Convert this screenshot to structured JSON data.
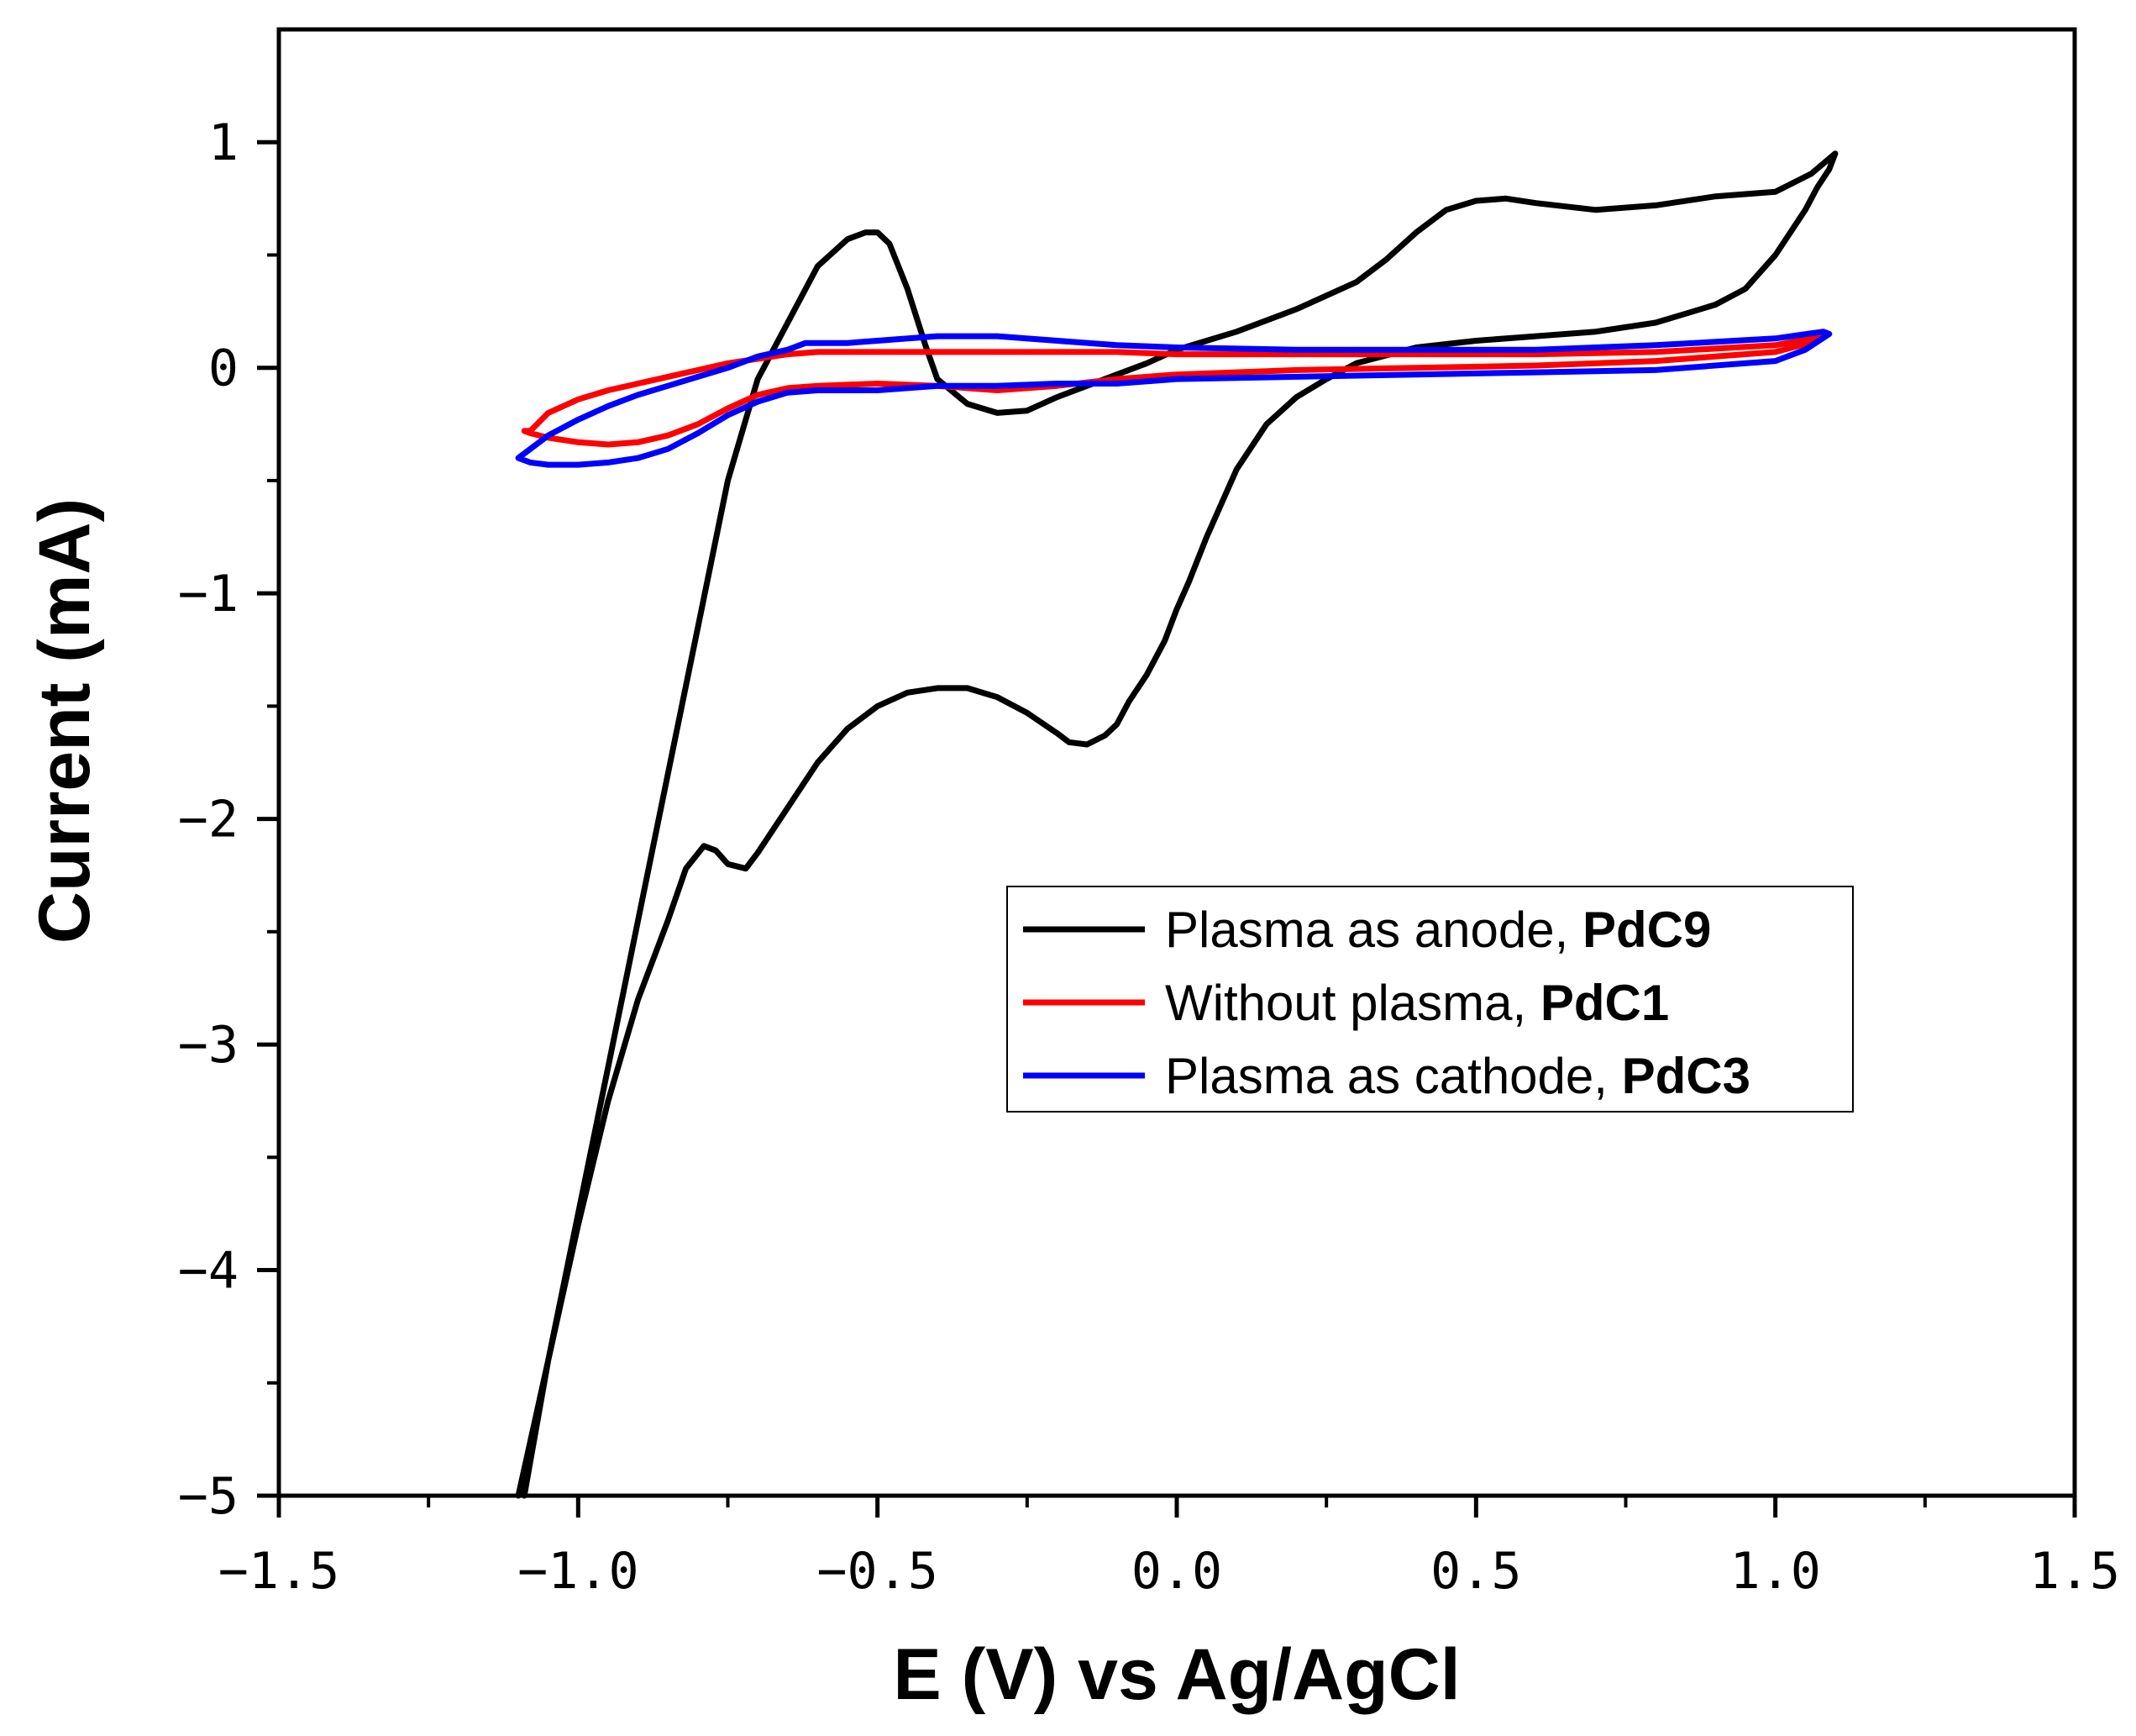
{
  "chart_data": {
    "type": "line",
    "title": "",
    "xlabel": "E (V) vs Ag/AgCl",
    "ylabel": "Current (mA)",
    "xlim": [
      -1.5,
      1.5
    ],
    "ylim": [
      -5,
      1.5
    ],
    "xticks": [
      -1.5,
      -1.0,
      -0.5,
      0.0,
      0.5,
      1.0,
      1.5
    ],
    "xtick_labels": [
      "−1.5",
      "−1.0",
      "−0.5",
      "0.0",
      "0.5",
      "1.0",
      "1.5"
    ],
    "yticks": [
      -5,
      -4,
      -3,
      -2,
      -1,
      0,
      1
    ],
    "ytick_labels": [
      "−5",
      "−4",
      "−3",
      "−2",
      "−1",
      "0",
      "1"
    ],
    "grid": false,
    "legend_position": "center-right",
    "series": [
      {
        "name": "Plasma as anode, PdC9",
        "label_plain": "Plasma as anode, ",
        "label_bold": "PdC9",
        "color": "#000000",
        "x": [
          -1.1,
          -1.05,
          -1.0,
          -0.95,
          -0.9,
          -0.85,
          -0.8,
          -0.75,
          -0.7,
          -0.65,
          -0.6,
          -0.55,
          -0.52,
          -0.5,
          -0.48,
          -0.45,
          -0.42,
          -0.4,
          -0.35,
          -0.3,
          -0.25,
          -0.2,
          -0.15,
          -0.1,
          -0.05,
          0.0,
          0.05,
          0.1,
          0.2,
          0.3,
          0.35,
          0.4,
          0.45,
          0.5,
          0.55,
          0.6,
          0.7,
          0.8,
          0.9,
          1.0,
          1.06,
          1.1,
          1.09,
          1.07,
          1.05,
          1.0,
          0.95,
          0.9,
          0.85,
          0.8,
          0.7,
          0.6,
          0.5,
          0.4,
          0.3,
          0.25,
          0.2,
          0.15,
          0.1,
          0.05,
          0.02,
          0.0,
          -0.02,
          -0.05,
          -0.08,
          -0.1,
          -0.12,
          -0.15,
          -0.18,
          -0.2,
          -0.25,
          -0.3,
          -0.35,
          -0.4,
          -0.45,
          -0.5,
          -0.55,
          -0.6,
          -0.65,
          -0.7,
          -0.72,
          -0.75,
          -0.77,
          -0.79,
          -0.82,
          -0.85,
          -0.9,
          -0.95,
          -1.0,
          -1.05,
          -1.08,
          -1.09
        ],
        "y": [
          -5.0,
          -4.4,
          -3.75,
          -3.1,
          -2.45,
          -1.8,
          -1.15,
          -0.5,
          -0.05,
          0.2,
          0.45,
          0.57,
          0.6,
          0.6,
          0.55,
          0.35,
          0.1,
          -0.05,
          -0.16,
          -0.2,
          -0.19,
          -0.13,
          -0.08,
          -0.03,
          0.02,
          0.08,
          0.12,
          0.16,
          0.26,
          0.38,
          0.48,
          0.6,
          0.7,
          0.74,
          0.75,
          0.73,
          0.7,
          0.72,
          0.76,
          0.78,
          0.86,
          0.95,
          0.88,
          0.8,
          0.7,
          0.5,
          0.35,
          0.28,
          0.24,
          0.2,
          0.16,
          0.14,
          0.12,
          0.09,
          0.02,
          -0.05,
          -0.13,
          -0.25,
          -0.45,
          -0.75,
          -0.95,
          -1.07,
          -1.21,
          -1.36,
          -1.48,
          -1.58,
          -1.63,
          -1.67,
          -1.66,
          -1.62,
          -1.53,
          -1.46,
          -1.42,
          -1.42,
          -1.44,
          -1.5,
          -1.6,
          -1.75,
          -1.95,
          -2.15,
          -2.22,
          -2.2,
          -2.14,
          -2.12,
          -2.22,
          -2.45,
          -2.8,
          -3.25,
          -3.8,
          -4.4,
          -4.85,
          -5.0
        ]
      },
      {
        "name": "Without plasma, PdC1",
        "label_plain": "Without plasma, ",
        "label_bold": "PdC1",
        "color": "#ff0000",
        "x": [
          -1.08,
          -1.05,
          -1.0,
          -0.95,
          -0.9,
          -0.85,
          -0.8,
          -0.75,
          -0.7,
          -0.65,
          -0.6,
          -0.5,
          -0.4,
          -0.3,
          -0.2,
          -0.1,
          0.0,
          0.2,
          0.4,
          0.6,
          0.8,
          1.0,
          1.08,
          1.07,
          1.0,
          0.8,
          0.6,
          0.4,
          0.2,
          0.0,
          -0.1,
          -0.2,
          -0.3,
          -0.4,
          -0.5,
          -0.6,
          -0.65,
          -0.7,
          -0.75,
          -0.8,
          -0.85,
          -0.9,
          -0.95,
          -1.0,
          -1.05,
          -1.08,
          -1.09,
          -1.08
        ],
        "y": [
          -0.28,
          -0.2,
          -0.14,
          -0.1,
          -0.07,
          -0.04,
          -0.01,
          0.02,
          0.04,
          0.06,
          0.07,
          0.07,
          0.07,
          0.07,
          0.07,
          0.07,
          0.06,
          0.06,
          0.06,
          0.06,
          0.07,
          0.1,
          0.14,
          0.12,
          0.07,
          0.03,
          0.01,
          0.0,
          -0.01,
          -0.03,
          -0.05,
          -0.08,
          -0.1,
          -0.08,
          -0.07,
          -0.08,
          -0.09,
          -0.12,
          -0.18,
          -0.25,
          -0.3,
          -0.33,
          -0.34,
          -0.33,
          -0.31,
          -0.29,
          -0.28,
          -0.28
        ]
      },
      {
        "name": "Plasma as cathode, PdC3",
        "label_plain": "Plasma as cathode, ",
        "label_bold": "PdC3",
        "color": "#0000ff",
        "x": [
          -1.1,
          -1.05,
          -1.0,
          -0.95,
          -0.9,
          -0.85,
          -0.8,
          -0.75,
          -0.7,
          -0.65,
          -0.62,
          -0.55,
          -0.5,
          -0.4,
          -0.3,
          -0.2,
          -0.1,
          0.0,
          0.2,
          0.4,
          0.6,
          0.8,
          1.0,
          1.08,
          1.09,
          1.05,
          1.0,
          0.8,
          0.6,
          0.4,
          0.2,
          0.0,
          -0.1,
          -0.2,
          -0.3,
          -0.4,
          -0.5,
          -0.6,
          -0.65,
          -0.7,
          -0.75,
          -0.8,
          -0.85,
          -0.9,
          -0.95,
          -1.0,
          -1.05,
          -1.08,
          -1.1
        ],
        "y": [
          -0.4,
          -0.3,
          -0.23,
          -0.17,
          -0.12,
          -0.08,
          -0.04,
          0.0,
          0.05,
          0.08,
          0.11,
          0.11,
          0.12,
          0.14,
          0.14,
          0.12,
          0.1,
          0.09,
          0.08,
          0.08,
          0.08,
          0.1,
          0.13,
          0.16,
          0.15,
          0.08,
          0.03,
          -0.01,
          -0.02,
          -0.03,
          -0.04,
          -0.05,
          -0.07,
          -0.07,
          -0.08,
          -0.08,
          -0.1,
          -0.1,
          -0.11,
          -0.15,
          -0.21,
          -0.29,
          -0.36,
          -0.4,
          -0.42,
          -0.43,
          -0.43,
          -0.42,
          -0.4
        ]
      }
    ]
  }
}
